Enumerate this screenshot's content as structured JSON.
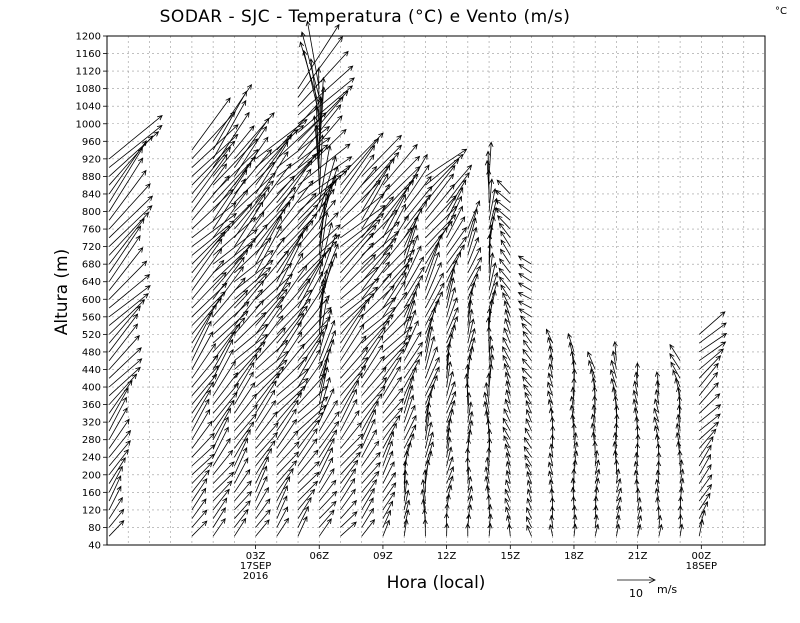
{
  "chart_data": {
    "type": "wind-barb",
    "title": "SODAR - SJC - Temperatura (°C) e Vento (m/s)",
    "corner_unit": "°C",
    "xlabel": "Hora (local)",
    "ylabel": "Altura (m)",
    "xlim": [
      -4,
      27
    ],
    "ylim": [
      40,
      1200
    ],
    "y_ticks": [
      40,
      80,
      120,
      160,
      200,
      240,
      280,
      320,
      360,
      400,
      440,
      480,
      520,
      560,
      600,
      640,
      680,
      720,
      760,
      800,
      840,
      880,
      920,
      960,
      1000,
      1040,
      1080,
      1120,
      1160,
      1200
    ],
    "x_ticks": [
      {
        "x": 3,
        "lines": [
          "03Z",
          "17SEP",
          "2016"
        ]
      },
      {
        "x": 6,
        "lines": [
          "06Z"
        ]
      },
      {
        "x": 9,
        "lines": [
          "09Z"
        ]
      },
      {
        "x": 12,
        "lines": [
          "12Z"
        ]
      },
      {
        "x": 15,
        "lines": [
          "15Z"
        ]
      },
      {
        "x": 18,
        "lines": [
          "18Z"
        ]
      },
      {
        "x": 21,
        "lines": [
          "21Z"
        ]
      },
      {
        "x": 24,
        "lines": [
          "00Z",
          "18SEP"
        ]
      }
    ],
    "reference_vector": {
      "speed": 10,
      "label": "10",
      "unit": "m/s"
    },
    "barb_step_m": 20,
    "profiles": [
      {
        "hour": -3.9,
        "top": 920,
        "dir_low": 215,
        "dir_high": 225,
        "spd_low": 5,
        "spd_high": 18
      },
      {
        "hour": 0,
        "top": 940,
        "dir_low": 215,
        "dir_high": 222,
        "spd_low": 5,
        "spd_high": 17
      },
      {
        "hour": 1,
        "top": 960,
        "dir_low": 215,
        "dir_high": 222,
        "spd_low": 5,
        "spd_high": 18
      },
      {
        "hour": 2,
        "top": 920,
        "dir_low": 215,
        "dir_high": 225,
        "spd_low": 5,
        "spd_high": 16
      },
      {
        "hour": 3,
        "top": 920,
        "dir_low": 215,
        "dir_high": 222,
        "spd_low": 5,
        "spd_high": 17
      },
      {
        "hour": 4,
        "top": 940,
        "dir_low": 215,
        "dir_high": 222,
        "spd_low": 5,
        "spd_high": 18
      },
      {
        "hour": 5,
        "top": 1080,
        "dir_low": 215,
        "dir_high": 225,
        "spd_low": 5,
        "spd_high": 20
      },
      {
        "hour": 6,
        "top": 1080,
        "dir_low": 215,
        "dir_high": 175,
        "spd_low": 5,
        "spd_high": 18
      },
      {
        "hour": 7,
        "top": 880,
        "dir_low": 215,
        "dir_high": 225,
        "spd_low": 5,
        "spd_high": 16
      },
      {
        "hour": 8,
        "top": 880,
        "dir_low": 215,
        "dir_high": 222,
        "spd_low": 5,
        "spd_high": 15
      },
      {
        "hour": 9,
        "top": 860,
        "dir_low": 210,
        "dir_high": 222,
        "spd_low": 4,
        "spd_high": 14
      },
      {
        "hour": 10,
        "top": 840,
        "dir_low": 190,
        "dir_high": 215,
        "spd_low": 4,
        "spd_high": 12
      },
      {
        "hour": 11,
        "top": 880,
        "dir_low": 175,
        "dir_high": 225,
        "spd_low": 4,
        "spd_high": 13
      },
      {
        "hour": 12,
        "top": 840,
        "dir_low": 185,
        "dir_high": 210,
        "spd_low": 3,
        "spd_high": 10
      },
      {
        "hour": 13,
        "top": 760,
        "dir_low": 180,
        "dir_high": 200,
        "spd_low": 3,
        "spd_high": 8
      },
      {
        "hour": 14,
        "top": 880,
        "dir_low": 175,
        "dir_high": 190,
        "spd_low": 3,
        "spd_high": 9
      },
      {
        "hour": 15,
        "top": 840,
        "dir_low": 170,
        "dir_high": 140,
        "spd_low": 3,
        "spd_high": 5
      },
      {
        "hour": 16,
        "top": 680,
        "dir_low": 170,
        "dir_high": 120,
        "spd_low": 3,
        "spd_high": 4
      },
      {
        "hour": 17,
        "top": 500,
        "dir_low": 175,
        "dir_high": 160,
        "spd_low": 3,
        "spd_high": 4
      },
      {
        "hour": 18,
        "top": 480,
        "dir_low": 180,
        "dir_high": 175,
        "spd_low": 3,
        "spd_high": 5
      },
      {
        "hour": 19,
        "top": 440,
        "dir_low": 190,
        "dir_high": 170,
        "spd_low": 3,
        "spd_high": 5
      },
      {
        "hour": 20,
        "top": 460,
        "dir_low": 195,
        "dir_high": 170,
        "spd_low": 3,
        "spd_high": 5
      },
      {
        "hour": 21,
        "top": 420,
        "dir_low": 190,
        "dir_high": 170,
        "spd_low": 3,
        "spd_high": 4
      },
      {
        "hour": 22,
        "top": 400,
        "dir_low": 190,
        "dir_high": 160,
        "spd_low": 3,
        "spd_high": 4
      },
      {
        "hour": 23,
        "top": 460,
        "dir_low": 200,
        "dir_high": 150,
        "spd_low": 3,
        "spd_high": 5
      },
      {
        "hour": 23.9,
        "top": 520,
        "dir_low": 200,
        "dir_high": 235,
        "spd_low": 4,
        "spd_high": 9
      }
    ]
  }
}
